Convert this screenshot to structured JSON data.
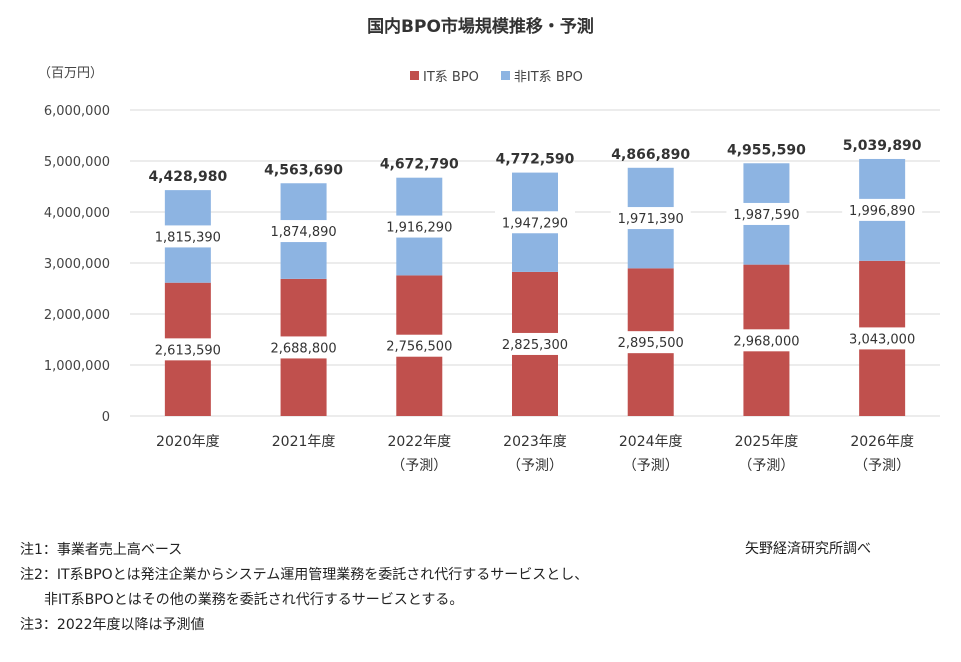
{
  "title": "国内BPO市場規模推移・予測",
  "unit_label": "（百万円）",
  "legend": [
    {
      "label": "IT系 BPO",
      "color": "#c0504d"
    },
    {
      "label": "非IT系 BPO",
      "color": "#8db4e2"
    }
  ],
  "chart_data": {
    "type": "bar",
    "stacked": true,
    "title": "国内BPO市場規模推移・予測",
    "ylabel": "（百万円）",
    "ylim": [
      0,
      6000000
    ],
    "yticks": [
      "0",
      "1,000,000",
      "2,000,000",
      "3,000,000",
      "4,000,000",
      "5,000,000",
      "6,000,000"
    ],
    "categories": [
      [
        "2020年度"
      ],
      [
        "2021年度"
      ],
      [
        "2022年度",
        "（予測）"
      ],
      [
        "2023年度",
        "（予測）"
      ],
      [
        "2024年度",
        "（予測）"
      ],
      [
        "2025年度",
        "（予測）"
      ],
      [
        "2026年度",
        "（予測）"
      ]
    ],
    "series": [
      {
        "name": "IT系 BPO",
        "color": "#c0504d",
        "values": [
          2613590,
          2688800,
          2756500,
          2825300,
          2895500,
          2968000,
          3043000
        ],
        "labels": [
          "2,613,590",
          "2,688,800",
          "2,756,500",
          "2,825,300",
          "2,895,500",
          "2,968,000",
          "3,043,000"
        ]
      },
      {
        "name": "非IT系 BPO",
        "color": "#8db4e2",
        "values": [
          1815390,
          1874890,
          1916290,
          1947290,
          1971390,
          1987590,
          1996890
        ],
        "labels": [
          "1,815,390",
          "1,874,890",
          "1,916,290",
          "1,947,290",
          "1,971,390",
          "1,987,590",
          "1,996,890"
        ]
      }
    ],
    "totals": [
      4428980,
      4563690,
      4672790,
      4772590,
      4866890,
      4955590,
      5039890
    ],
    "total_labels": [
      "4,428,980",
      "4,563,690",
      "4,672,790",
      "4,772,590",
      "4,866,890",
      "4,955,590",
      "5,039,890"
    ],
    "grid": true,
    "legend_position": "top"
  },
  "notes": [
    "注1：事業者売上高ベース",
    "注2：IT系BPOとは発注企業からシステム運用管理業務を委託され代行するサービスとし、",
    "非IT系BPOとはその他の業務を委託され代行するサービスとする。",
    "注3：2022年度以降は予測値"
  ],
  "source": "矢野経済研究所調べ"
}
